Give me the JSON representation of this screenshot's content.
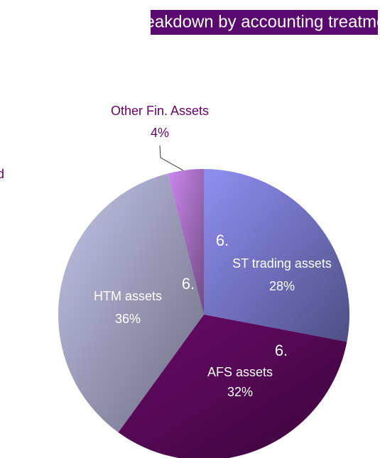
{
  "chart_data": {
    "type": "pie",
    "title": "Breakdown by accounting treatment",
    "categories": [
      "ST trading assets",
      "AFS assets",
      "HTM assets",
      "Other Fin. Assets"
    ],
    "values": [
      28,
      32,
      36,
      4
    ],
    "value_labels": [
      "28%",
      "32%",
      "36%",
      "4%"
    ],
    "colors": [
      "#8f8ff2",
      "#6a0a6a",
      "#c4c4ea",
      "#cc88ee"
    ],
    "annotations": [
      "6.",
      "6.",
      "6.",
      "d"
    ]
  }
}
